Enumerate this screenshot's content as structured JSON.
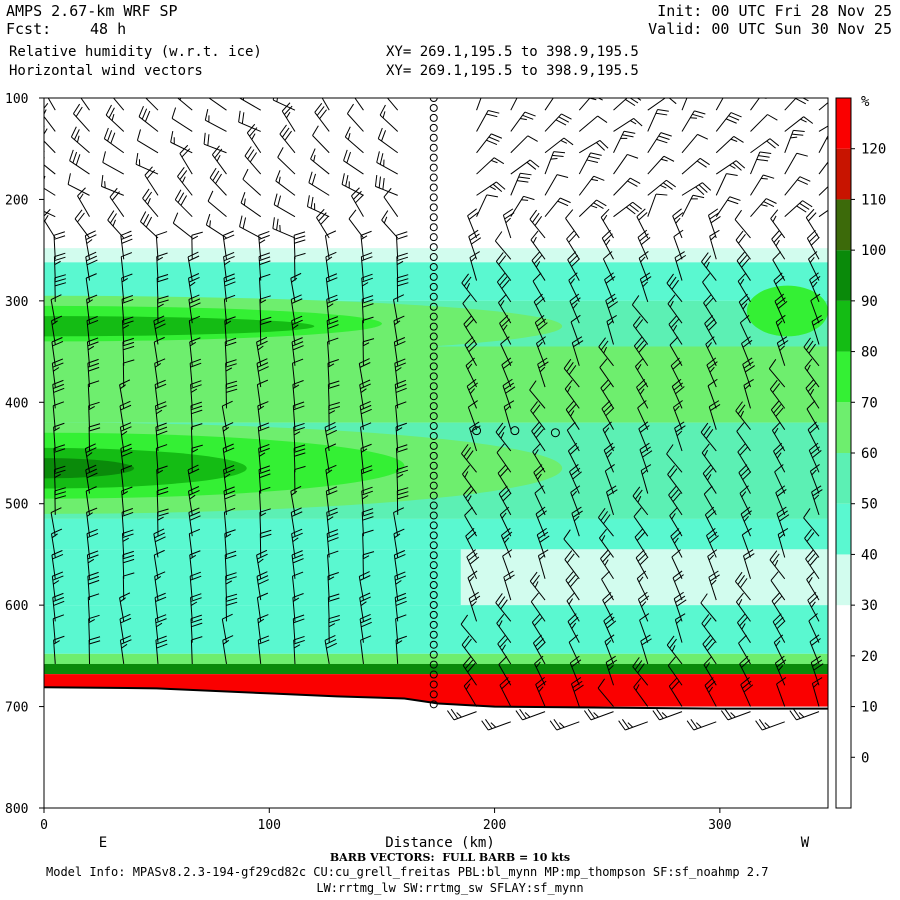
{
  "header": {
    "model": "AMPS 2.67-km WRF SP",
    "fcst_label": "Fcst:",
    "fcst_value": "48 h",
    "field1": "Relative humidity (w.r.t. ice)",
    "field2": "Horizontal wind vectors",
    "xy1": "XY= 269.1,195.5 to 398.9,195.5",
    "xy2": "XY= 269.1,195.5 to 398.9,195.5",
    "init": "Init: 00 UTC Fri 28 Nov 25",
    "valid": "Valid: 00 UTC Sun 30 Nov 25"
  },
  "footer": {
    "barb_note": "BARB VECTORS:  FULL BARB = 10 kts",
    "model_info": "Model Info: MPASv8.2.3-194-gf29cd82c CU:cu_grell_freitas PBL:bl_mynn MP:mp_thompson SF:sf_noahmp 2.7",
    "model_info2": "LW:rrtmg_lw SW:rrtmg_sw SFLAY:sf_mynn"
  },
  "chart_data": {
    "type": "heatmap",
    "title": "Relative humidity (w.r.t. ice)",
    "xlabel": "Distance (km)",
    "ylabel": "",
    "xlim": [
      0,
      348
    ],
    "ylim": [
      800,
      100
    ],
    "x_ticks": [
      0,
      100,
      200,
      300
    ],
    "y_ticks": [
      100,
      200,
      300,
      400,
      500,
      600,
      700,
      800
    ],
    "endpoint_labels": {
      "left": "E",
      "right": "W"
    },
    "colorbar": {
      "unit": "%",
      "tick_labels": [
        0,
        10,
        20,
        30,
        40,
        50,
        60,
        70,
        80,
        90,
        100,
        110,
        120
      ],
      "bands": [
        {
          "from": -10,
          "to": 30,
          "color": "#ffffff"
        },
        {
          "from": 30,
          "to": 40,
          "color": "#d2fcee"
        },
        {
          "from": 40,
          "to": 50,
          "color": "#5af8d0"
        },
        {
          "from": 50,
          "to": 60,
          "color": "#5cf0b4"
        },
        {
          "from": 60,
          "to": 70,
          "color": "#6eee6e"
        },
        {
          "from": 70,
          "to": 80,
          "color": "#34f034"
        },
        {
          "from": 80,
          "to": 90,
          "color": "#14bc14"
        },
        {
          "from": 90,
          "to": 100,
          "color": "#0a8a0a"
        },
        {
          "from": 100,
          "to": 110,
          "color": "#3c6a0a"
        },
        {
          "from": 110,
          "to": 120,
          "color": "#c81400"
        },
        {
          "from": 120,
          "to": 130,
          "color": "#fa0000"
        }
      ]
    },
    "layers": [
      {
        "p_top": 248,
        "p_bot": 262,
        "rh": 35,
        "x_from": 0,
        "x_to": 348
      },
      {
        "p_top": 262,
        "p_bot": 300,
        "rh": 45,
        "x_from": 0,
        "x_to": 348
      },
      {
        "p_top": 300,
        "p_bot": 345,
        "rh": 55,
        "x_from": 0,
        "x_to": 348
      },
      {
        "p_top": 345,
        "p_bot": 420,
        "rh": 60,
        "x_from": 0,
        "x_to": 348
      },
      {
        "p_top": 420,
        "p_bot": 515,
        "rh": 55,
        "x_from": 0,
        "x_to": 348
      },
      {
        "p_top": 515,
        "p_bot": 545,
        "rh": 45,
        "x_from": 0,
        "x_to": 348
      },
      {
        "p_top": 545,
        "p_bot": 600,
        "rh": 35,
        "x_from": 185,
        "x_to": 348
      },
      {
        "p_top": 545,
        "p_bot": 600,
        "rh": 45,
        "x_from": 0,
        "x_to": 185
      },
      {
        "p_top": 600,
        "p_bot": 648,
        "rh": 45,
        "x_from": 0,
        "x_to": 348
      },
      {
        "p_top": 648,
        "p_bot": 658,
        "rh": 65,
        "x_from": 0,
        "x_to": 348
      },
      {
        "p_top": 658,
        "p_bot": 668,
        "rh": 95,
        "x_from": 0,
        "x_to": 348
      },
      {
        "p_top": 668,
        "p_bot": 700,
        "rh": 125,
        "x_from": 0,
        "x_to": 348
      }
    ],
    "features": [
      {
        "x_from": 0,
        "x_to": 150,
        "p_top": 305,
        "p_bot": 340,
        "rh": 75
      },
      {
        "x_from": 0,
        "x_to": 120,
        "p_top": 315,
        "p_bot": 335,
        "rh": 85
      },
      {
        "x_from": 0,
        "x_to": 230,
        "p_top": 295,
        "p_bot": 355,
        "rh": 65
      },
      {
        "x_from": 0,
        "x_to": 160,
        "p_top": 430,
        "p_bot": 495,
        "rh": 75
      },
      {
        "x_from": 0,
        "x_to": 90,
        "p_top": 445,
        "p_bot": 485,
        "rh": 85
      },
      {
        "x_from": 0,
        "x_to": 40,
        "p_top": 455,
        "p_bot": 475,
        "rh": 95
      },
      {
        "x_from": 0,
        "x_to": 230,
        "p_top": 420,
        "p_bot": 510,
        "rh": 65
      },
      {
        "x_from": 330,
        "x_to": 348,
        "p_top": 285,
        "p_bot": 335,
        "rh": 75
      }
    ],
    "terrain": [
      {
        "x": 0,
        "p": 681
      },
      {
        "x": 50,
        "p": 682
      },
      {
        "x": 100,
        "p": 687
      },
      {
        "x": 130,
        "p": 690
      },
      {
        "x": 160,
        "p": 692
      },
      {
        "x": 175,
        "p": 697
      },
      {
        "x": 200,
        "p": 700
      },
      {
        "x": 250,
        "p": 701
      },
      {
        "x": 300,
        "p": 702
      },
      {
        "x": 348,
        "p": 702
      }
    ],
    "wind_barb_profiles": [
      {
        "x_from": 0,
        "x_to": 170,
        "p_top": 110,
        "p_bot": 690,
        "description": "northerly barbs, 10-30 kts"
      },
      {
        "x_from": 190,
        "x_to": 348,
        "p_top": 110,
        "p_bot": 720,
        "description": "westerly barbs, 10-30 kts"
      }
    ],
    "calm_column_x": 173,
    "calm_points": [
      {
        "x": 192,
        "p": 428
      },
      {
        "x": 209,
        "p": 428
      },
      {
        "x": 227,
        "p": 430
      }
    ]
  }
}
